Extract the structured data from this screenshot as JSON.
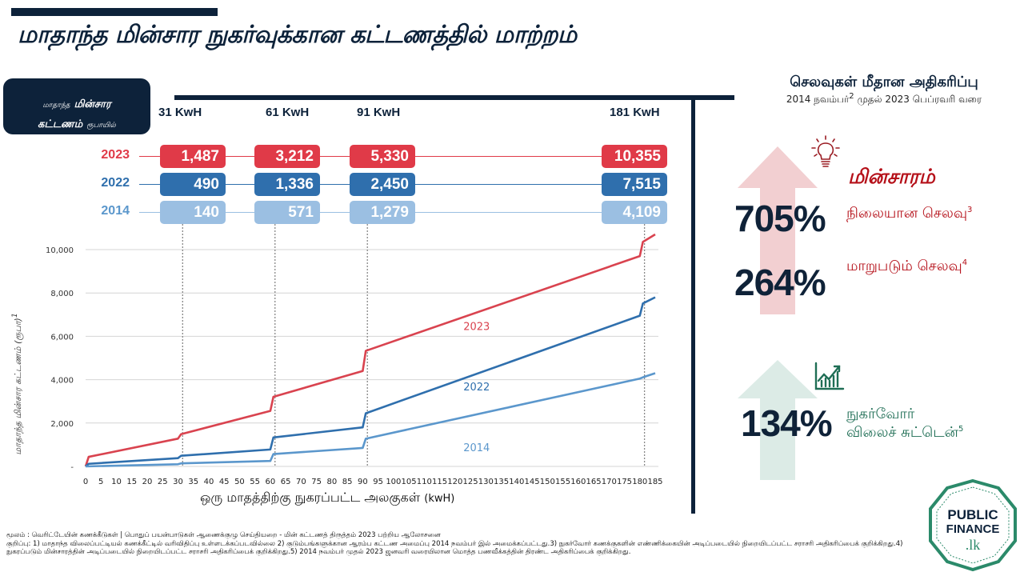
{
  "title": "மாதாந்த மின்சார நுகர்வுக்கான கட்டணத்தில் மாற்றம்",
  "legend_box": {
    "line1_small": "மாதாந்த",
    "line1_bold": "மின்சார",
    "line2_bold": "கட்டணம்",
    "line2_small": "ரூபாயில்"
  },
  "table": {
    "columns": [
      "31 KwH",
      "61 KwH",
      "91 KwH",
      "181 KwH"
    ],
    "rows": [
      {
        "year": "2023",
        "color": "#e03a48",
        "values": [
          "1,487",
          "3,212",
          "5,330",
          "10,355"
        ]
      },
      {
        "year": "2022",
        "color": "#2f6fad",
        "values": [
          "490",
          "1,336",
          "2,450",
          "7,515"
        ]
      },
      {
        "year": "2014",
        "color": "#9bbfe2",
        "values": [
          "140",
          "571",
          "1,279",
          "4,109"
        ]
      }
    ]
  },
  "chart_data": {
    "type": "line",
    "title": "",
    "xlabel": "ஒரு மாதத்திற்கு நுகரப்பட்ட அலகுகள்",
    "xlabel_unit": "(kwH)",
    "ylabel": "மாதாந்த மின்சார கட்டணம் (ரூபா)",
    "ylabel_sup": "1",
    "xlim": [
      0,
      185
    ],
    "ylim": [
      0,
      10000
    ],
    "x_ticks": [
      0,
      5,
      10,
      15,
      20,
      25,
      30,
      35,
      40,
      45,
      50,
      55,
      60,
      65,
      70,
      75,
      80,
      85,
      90,
      95,
      100,
      105,
      110,
      115,
      120,
      125,
      130,
      135,
      140,
      145,
      150,
      155,
      160,
      165,
      170,
      175,
      180,
      185
    ],
    "y_ticks": [
      0,
      2000,
      4000,
      6000,
      8000,
      10000
    ],
    "y_tick_labels": [
      "-",
      "2,000",
      "4,000",
      "6,000",
      "8,000",
      "10,000"
    ],
    "grid": "horizontal",
    "reference_lines_x": [
      31,
      61,
      91,
      181
    ],
    "series": [
      {
        "name": "2023",
        "color": "#d9434f",
        "x": [
          0,
          1,
          30,
          31,
          60,
          61,
          90,
          91,
          180,
          181,
          185
        ],
        "y": [
          0,
          440,
          1280,
          1487,
          2560,
          3212,
          4400,
          5330,
          9700,
          10355,
          10700
        ]
      },
      {
        "name": "2022",
        "color": "#2f6fad",
        "x": [
          0,
          1,
          30,
          31,
          60,
          61,
          90,
          91,
          180,
          181,
          185
        ],
        "y": [
          0,
          120,
          380,
          490,
          780,
          1336,
          1800,
          2450,
          6950,
          7515,
          7800
        ]
      },
      {
        "name": "2014",
        "color": "#5b97cc",
        "x": [
          0,
          30,
          31,
          60,
          61,
          90,
          91,
          180,
          181,
          185
        ],
        "y": [
          0,
          100,
          140,
          250,
          571,
          850,
          1279,
          4050,
          4109,
          4300
        ]
      }
    ],
    "annotations": [
      {
        "text": "2023",
        "x": 127,
        "y": 6300
      },
      {
        "text": "2022",
        "x": 127,
        "y": 3500
      },
      {
        "text": "2014",
        "x": 127,
        "y": 700
      }
    ]
  },
  "right_panel": {
    "heading": "செலவுகள் மீதான அதிகரிப்பு",
    "subheading_a": "2014 நவம்பர்",
    "subheading_sup": "2",
    "subheading_b": " முதல் 2023 பெப்ரவரி வரை",
    "electricity_title": "மின்சாரம்",
    "stats": [
      {
        "value": "705%",
        "label": "நிலையான செலவு",
        "sup": "3",
        "color": "#b51019"
      },
      {
        "value": "264%",
        "label": "மாறுபடும் செலவு",
        "sup": "4",
        "color": "#b51019"
      },
      {
        "value": "134%",
        "label_line1": "நுகர்வோர்",
        "label_line2": "விலைச் சுட்டென்",
        "sup": "5",
        "color": "#1f6e55"
      }
    ],
    "icons": [
      "light-bulb-icon",
      "growth-chart-icon"
    ]
  },
  "footnotes": {
    "source": "மூலம் : வெரிட்டேயின் கணக்கீடுகள் | பொதுப் பயன்பாடுகள் ஆணைக்குழு செய்தியறை - மின் கட்டணத் திருத்தம் 2023 பற்றிய ஆலோசனை",
    "notes": "குறிப்பு: 1) மாதாந்த விலைப்பட்டியல் கணக்கீட்டில் வரிவிதிப்பு உள்ளடக்கப்படவில்லை 2) குடும்பங்களுக்கான ஆரம்ப கட்டண அமைப்பு 2014 நவம்பர் இல் அமைக்கப்பட்டது.3) நுகர்வோர் கணக்குகளின் எண்ணிக்கையின் அடிப்படையில் நிறையிடப்பட்ட சராசரி அதிகரிப்பைக் குறிக்கிறது.4) நுகரப்படும் மின்சாரத்தின் அடிப்படையில் நிறையிடப்பட்ட சராசரி அதிகரிப்பைக் குறிக்கிறது.5) 2014 நவம்பர் முதல் 2023 ஜனவரி வரையிலான மொத்த பணவீக்கத்தின் திரண்ட அதிகரிப்பைக் குறிக்கிறது."
  },
  "logo": {
    "line1": "PUBLIC",
    "line2": "FINANCE",
    "line3": ".lk",
    "color": "#2b8a6a"
  }
}
